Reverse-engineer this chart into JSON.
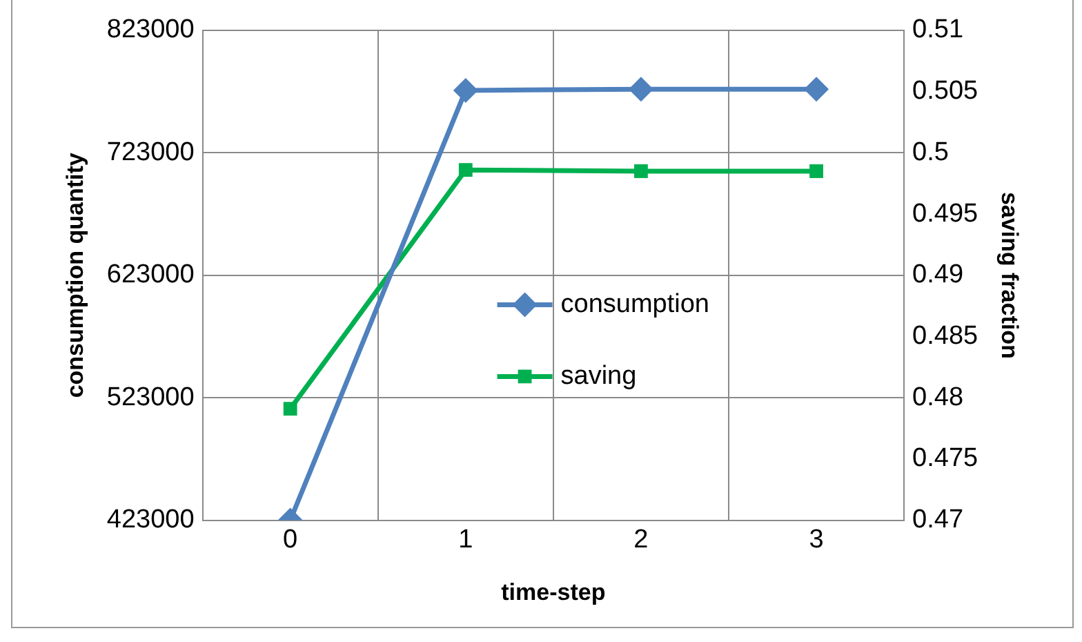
{
  "chart_data": {
    "type": "line",
    "xlabel": "time-step",
    "ylabel": "consumption quantity",
    "y2label": "saving fraction",
    "categories": [
      "0",
      "1",
      "2",
      "3"
    ],
    "series": [
      {
        "name": "consumption",
        "color": "#4f81bd",
        "marker": "diamond",
        "values": [
          423000,
          774000,
          775000,
          775000
        ]
      },
      {
        "name": "saving",
        "color": "#00b050",
        "marker": "square",
        "axis": "y2",
        "values": [
          0.4791,
          0.4986,
          0.4985,
          0.4985
        ]
      }
    ],
    "ylim": [
      423000,
      823000
    ],
    "yticks": [
      423000,
      523000,
      623000,
      723000,
      823000
    ],
    "y2lim": [
      0.47,
      0.51
    ],
    "y2ticks": [
      0.47,
      0.475,
      0.48,
      0.485,
      0.49,
      0.495,
      0.5,
      0.505,
      0.51
    ],
    "grid": true,
    "legend": "center",
    "line_style": "solid"
  }
}
